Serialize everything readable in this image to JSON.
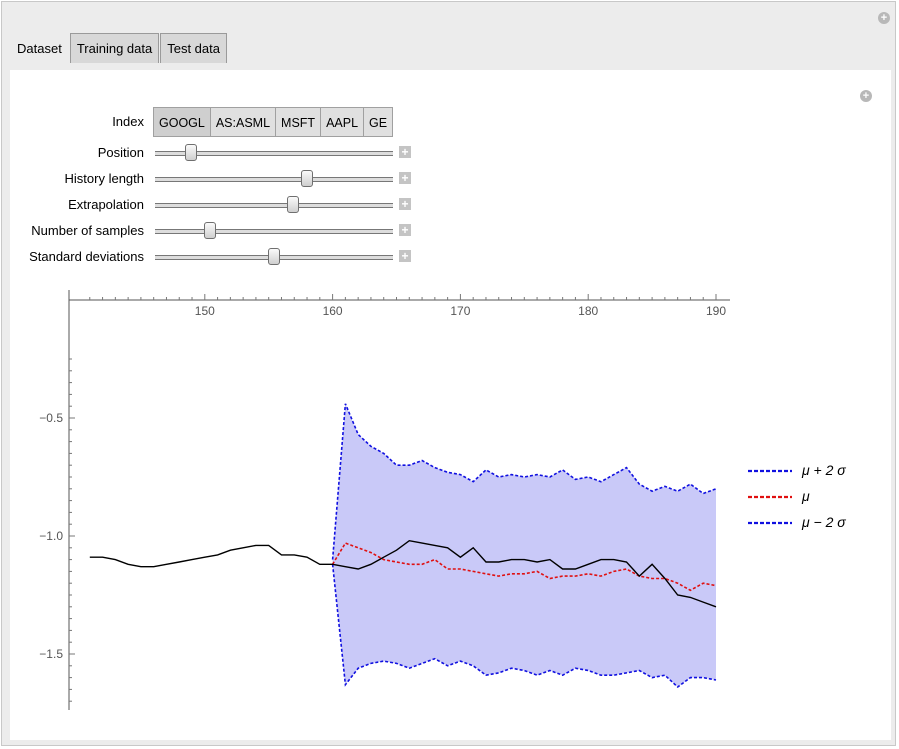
{
  "tabs": [
    "Dataset",
    "Training data",
    "Test data"
  ],
  "active_tab": 0,
  "index_selector": {
    "label": "Index",
    "options": [
      "GOOGL",
      "AS:ASML",
      "MSFT",
      "AAPL",
      "GE"
    ],
    "selected": 0
  },
  "sliders": [
    {
      "label": "Position",
      "value_fraction": 0.15
    },
    {
      "label": "History length",
      "value_fraction": 0.64
    },
    {
      "label": "Extrapolation",
      "value_fraction": 0.58
    },
    {
      "label": "Number of samples",
      "value_fraction": 0.23
    },
    {
      "label": "Standard deviations",
      "value_fraction": 0.5
    }
  ],
  "chart_data": {
    "type": "line",
    "title": "",
    "xlabel": "",
    "ylabel": "",
    "xlim": [
      140,
      190
    ],
    "ylim": [
      -1.75,
      -0.25
    ],
    "x_ticks": [
      150,
      160,
      170,
      180,
      190
    ],
    "y_ticks": [
      -0.5,
      -1.0,
      -1.5
    ],
    "x_tick_labels": [
      "150",
      "160",
      "170",
      "180",
      "190"
    ],
    "y_tick_labels": [
      "−0.5",
      "−1.0",
      "−1.5"
    ],
    "legend_position": "right",
    "legend": [
      {
        "label": "μ + 2 σ",
        "color": "#1010e0"
      },
      {
        "label": "μ",
        "color": "#e01010"
      },
      {
        "label": "μ − 2 σ",
        "color": "#1010e0"
      }
    ],
    "band_color": "#c9c9f8",
    "history": {
      "color": "#000000",
      "x": [
        141,
        142,
        143,
        144,
        145,
        146,
        147,
        148,
        149,
        150,
        151,
        152,
        153,
        154,
        155,
        156,
        157,
        158,
        159,
        160,
        161,
        162,
        163,
        164,
        165,
        166,
        167,
        168,
        169,
        170,
        171,
        172,
        173,
        174,
        175,
        176,
        177,
        178,
        179,
        180,
        181,
        182,
        183,
        184,
        185,
        186,
        187,
        188,
        189,
        190
      ],
      "y": [
        -1.09,
        -1.09,
        -1.1,
        -1.12,
        -1.13,
        -1.13,
        -1.12,
        -1.11,
        -1.1,
        -1.09,
        -1.08,
        -1.06,
        -1.05,
        -1.04,
        -1.04,
        -1.08,
        -1.08,
        -1.09,
        -1.12,
        -1.12,
        -1.13,
        -1.14,
        -1.12,
        -1.09,
        -1.06,
        -1.02,
        -1.03,
        -1.04,
        -1.05,
        -1.09,
        -1.05,
        -1.11,
        -1.11,
        -1.1,
        -1.1,
        -1.11,
        -1.1,
        -1.14,
        -1.14,
        -1.12,
        -1.1,
        -1.1,
        -1.11,
        -1.17,
        -1.12,
        -1.18,
        -1.25,
        -1.26,
        -1.28,
        -1.3
      ]
    },
    "mean": {
      "color": "#e01010",
      "x": [
        160,
        161,
        162,
        163,
        164,
        165,
        166,
        167,
        168,
        169,
        170,
        171,
        172,
        173,
        174,
        175,
        176,
        177,
        178,
        179,
        180,
        181,
        182,
        183,
        184,
        185,
        186,
        187,
        188,
        189,
        190
      ],
      "y": [
        -1.12,
        -1.03,
        -1.05,
        -1.07,
        -1.1,
        -1.11,
        -1.12,
        -1.12,
        -1.1,
        -1.14,
        -1.14,
        -1.15,
        -1.16,
        -1.17,
        -1.16,
        -1.16,
        -1.15,
        -1.18,
        -1.17,
        -1.17,
        -1.16,
        -1.17,
        -1.15,
        -1.14,
        -1.17,
        -1.18,
        -1.18,
        -1.2,
        -1.23,
        -1.2,
        -1.21
      ]
    },
    "upper": {
      "color": "#1010e0",
      "x": [
        160,
        161,
        162,
        163,
        164,
        165,
        166,
        167,
        168,
        169,
        170,
        171,
        172,
        173,
        174,
        175,
        176,
        177,
        178,
        179,
        180,
        181,
        182,
        183,
        184,
        185,
        186,
        187,
        188,
        189,
        190
      ],
      "y": [
        -1.1,
        -0.44,
        -0.57,
        -0.62,
        -0.65,
        -0.7,
        -0.7,
        -0.68,
        -0.71,
        -0.73,
        -0.74,
        -0.77,
        -0.72,
        -0.75,
        -0.74,
        -0.75,
        -0.74,
        -0.75,
        -0.72,
        -0.76,
        -0.75,
        -0.77,
        -0.74,
        -0.71,
        -0.78,
        -0.81,
        -0.79,
        -0.81,
        -0.78,
        -0.82,
        -0.8
      ]
    },
    "lower": {
      "color": "#1010e0",
      "x": [
        160,
        161,
        162,
        163,
        164,
        165,
        166,
        167,
        168,
        169,
        170,
        171,
        172,
        173,
        174,
        175,
        176,
        177,
        178,
        179,
        180,
        181,
        182,
        183,
        184,
        185,
        186,
        187,
        188,
        189,
        190
      ],
      "y": [
        -1.12,
        -1.63,
        -1.56,
        -1.54,
        -1.53,
        -1.54,
        -1.56,
        -1.54,
        -1.52,
        -1.55,
        -1.53,
        -1.55,
        -1.59,
        -1.58,
        -1.56,
        -1.57,
        -1.59,
        -1.57,
        -1.59,
        -1.56,
        -1.57,
        -1.59,
        -1.59,
        -1.58,
        -1.57,
        -1.6,
        -1.59,
        -1.64,
        -1.6,
        -1.6,
        -1.61
      ]
    }
  }
}
